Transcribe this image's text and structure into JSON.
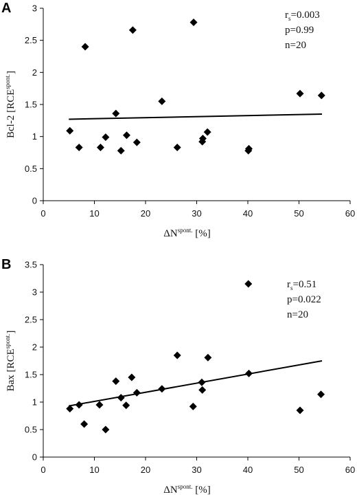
{
  "chart_data": [
    {
      "type": "scatter",
      "panel_label": "A",
      "xlabel_main": "ΔN",
      "xlabel_sup": "spont.",
      "xlabel_unit": " [%]",
      "ylabel_main": "Bcl-2 [RCE",
      "ylabel_sup": "spont.",
      "ylabel_end": "]",
      "xlim": [
        0,
        60
      ],
      "ylim": [
        0,
        3
      ],
      "xticks": [
        0,
        10,
        20,
        30,
        40,
        50,
        60
      ],
      "yticks": [
        0,
        0.5,
        1,
        1.5,
        2,
        2.5,
        3
      ],
      "points": [
        [
          5.2,
          1.09
        ],
        [
          7,
          0.83
        ],
        [
          8.2,
          2.4
        ],
        [
          11.2,
          0.83
        ],
        [
          12.2,
          0.99
        ],
        [
          14.2,
          1.36
        ],
        [
          15.2,
          0.78
        ],
        [
          16.3,
          1.02
        ],
        [
          17.5,
          2.66
        ],
        [
          18.3,
          0.91
        ],
        [
          23.2,
          1.55
        ],
        [
          26.2,
          0.83
        ],
        [
          29.4,
          2.78
        ],
        [
          31.1,
          0.92
        ],
        [
          31.2,
          0.97
        ],
        [
          32.1,
          1.07
        ],
        [
          40.1,
          0.78
        ],
        [
          40.2,
          0.81
        ],
        [
          50.2,
          1.67
        ],
        [
          54.4,
          1.64
        ]
      ],
      "trendline": {
        "x": [
          5,
          54.5
        ],
        "y": [
          1.27,
          1.35
        ]
      },
      "stats": {
        "rs_label": "r",
        "rs_sub": "s",
        "rs_value": "=0.003",
        "p": "p=0.99",
        "n": "n=20"
      }
    },
    {
      "type": "scatter",
      "panel_label": "B",
      "xlabel_main": "ΔN",
      "xlabel_sup": "spont.",
      "xlabel_unit": " [%]",
      "ylabel_main": "Bax [RCE",
      "ylabel_sup": "spont.",
      "ylabel_end": "]",
      "xlim": [
        0,
        60
      ],
      "ylim": [
        0,
        3.5
      ],
      "xticks": [
        0,
        10,
        20,
        30,
        40,
        50,
        60
      ],
      "yticks": [
        0,
        0.5,
        1,
        1.5,
        2,
        2.5,
        3,
        3.5
      ],
      "points": [
        [
          5.2,
          0.88
        ],
        [
          7,
          0.95
        ],
        [
          8,
          0.6
        ],
        [
          11,
          0.95
        ],
        [
          12.2,
          0.5
        ],
        [
          14.2,
          1.38
        ],
        [
          15.2,
          1.08
        ],
        [
          16.2,
          0.94
        ],
        [
          17.3,
          1.45
        ],
        [
          18.3,
          1.17
        ],
        [
          23.2,
          1.24
        ],
        [
          26.2,
          1.85
        ],
        [
          29.3,
          0.92
        ],
        [
          31,
          1.36
        ],
        [
          31.1,
          1.22
        ],
        [
          32.2,
          1.81
        ],
        [
          40.2,
          1.52
        ],
        [
          40.1,
          3.15
        ],
        [
          50.2,
          0.85
        ],
        [
          54.3,
          1.14
        ]
      ],
      "trendline": {
        "x": [
          5,
          54.5
        ],
        "y": [
          0.93,
          1.75
        ]
      },
      "stats": {
        "rs_label": "r",
        "rs_sub": "s",
        "rs_value": "=0.51",
        "p": "p=0.022",
        "n": "n=20"
      }
    }
  ]
}
